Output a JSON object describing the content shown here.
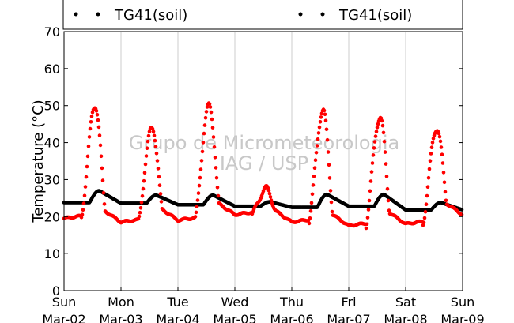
{
  "chart_data": {
    "type": "scatter",
    "ylabel": "Temperature (°C)",
    "xlabel": "",
    "ylim": [
      0,
      70
    ],
    "yticks": [
      0,
      10,
      20,
      30,
      40,
      50,
      60,
      70
    ],
    "xlim_days": [
      0,
      7
    ],
    "xtick_labels": [
      {
        "day": "Sun",
        "date": "Mar-02"
      },
      {
        "day": "Mon",
        "date": "Mar-03"
      },
      {
        "day": "Tue",
        "date": "Mar-04"
      },
      {
        "day": "Wed",
        "date": "Mar-05"
      },
      {
        "day": "Thu",
        "date": "Mar-06"
      },
      {
        "day": "Fri",
        "date": "Mar-07"
      },
      {
        "day": "Sat",
        "date": "Mar-08"
      },
      {
        "day": "Sun",
        "date": "Mar-09"
      }
    ],
    "grid": "vertical",
    "legend": {
      "placement": "top",
      "entries": [
        "TG41(soil)",
        "TG41(soil)"
      ]
    },
    "watermark": [
      "Grupo de Micrometeorologia",
      "IAG / USP"
    ],
    "series": [
      {
        "name": "TG41(soil)",
        "color": "#ff0000",
        "daily": [
          {
            "min": 19.5,
            "peak": 50,
            "next_min": 18.5
          },
          {
            "min": 18.5,
            "peak": 44,
            "next_min": 19.0
          },
          {
            "min": 19.0,
            "peak": 50,
            "next_min": 20.5
          },
          {
            "min": 20.5,
            "peak": 27.5,
            "next_min": 18.5
          },
          {
            "min": 18.5,
            "peak": 48.5,
            "next_min": 17.5
          },
          {
            "min": 17.5,
            "peak": 47,
            "next_min": 18.0
          },
          {
            "min": 18.0,
            "peak": 44,
            "next_min": 20.5
          }
        ]
      },
      {
        "name": "TG41(soil)",
        "color": "#000000",
        "daily": [
          {
            "min": 23.8,
            "peak": 27.0
          },
          {
            "min": 23.6,
            "peak": 25.8
          },
          {
            "min": 23.2,
            "peak": 25.8
          },
          {
            "min": 22.8,
            "peak": 24.0
          },
          {
            "min": 22.5,
            "peak": 26.0
          },
          {
            "min": 22.8,
            "peak": 26.0
          },
          {
            "min": 21.8,
            "peak": 23.8
          }
        ]
      }
    ]
  }
}
